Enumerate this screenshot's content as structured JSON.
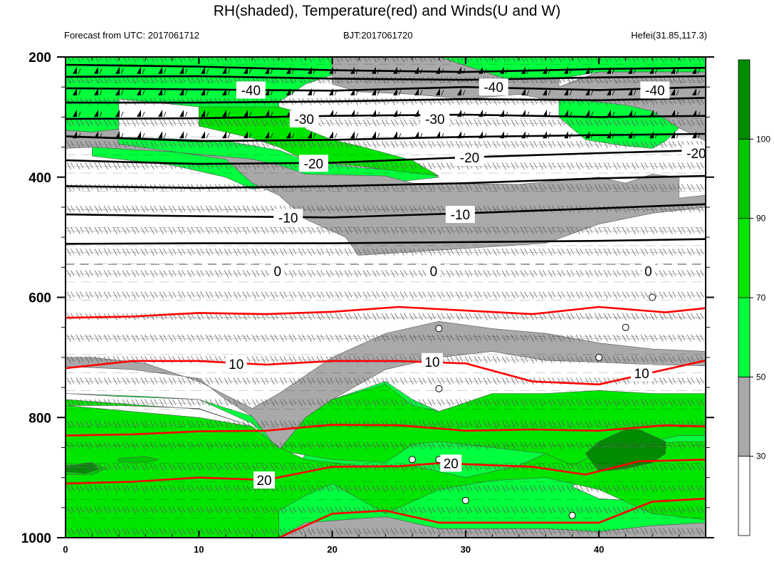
{
  "title": "RH(shaded), Temperature(red) and Winds(U and W)",
  "subtitle_left": "Forecast from UTC: 2017061712",
  "subtitle_center": "BJT:2017061720",
  "subtitle_right": "Hefei(31.85,117.3)",
  "colors": {
    "rh_below_30": "#ffffff",
    "rh_30_50": "#a9a9a9",
    "rh_50_70": "#00ff3c",
    "rh_70_90": "#00e600",
    "rh_90_100": "#00c800",
    "rh_above_100": "#008c00",
    "temperature": "#ff0000",
    "isotherm_below_0": "#000000"
  },
  "chart_data": {
    "type": "contour",
    "x_ticks": [
      "0",
      "10",
      "20",
      "30",
      "40"
    ],
    "y_ticks": [
      "200",
      "400",
      "600",
      "800",
      "1000"
    ],
    "xlim": [
      0,
      48
    ],
    "ylim": [
      1000,
      200
    ],
    "colorbar": {
      "levels": [
        "30",
        "50",
        "70",
        "90",
        "100"
      ]
    },
    "temperature_contour_labels": [
      {
        "text": "-40",
        "x": 13.9,
        "p": 255
      },
      {
        "text": "-40",
        "x": 32.1,
        "p": 250
      },
      {
        "text": "-40",
        "x": 44.2,
        "p": 255
      },
      {
        "text": "-30",
        "x": 17.9,
        "p": 303
      },
      {
        "text": "-30",
        "x": 27.7,
        "p": 303
      },
      {
        "text": "-20",
        "x": 18.6,
        "p": 377
      },
      {
        "text": "-20",
        "x": 30.3,
        "p": 367
      },
      {
        "text": "-20",
        "x": 47.3,
        "p": 360
      },
      {
        "text": "-10",
        "x": 16.7,
        "p": 467
      },
      {
        "text": "-10",
        "x": 29.6,
        "p": 462
      },
      {
        "text": "0",
        "x": 15.9,
        "p": 556
      },
      {
        "text": "0",
        "x": 27.6,
        "p": 556
      },
      {
        "text": "0",
        "x": 43.7,
        "p": 556
      },
      {
        "text": "10",
        "x": 12.8,
        "p": 711
      },
      {
        "text": "10",
        "x": 27.5,
        "p": 707
      },
      {
        "text": "10",
        "x": 43.2,
        "p": 726
      },
      {
        "text": "20",
        "x": 14.9,
        "p": 904
      },
      {
        "text": "20",
        "x": 28.9,
        "p": 876
      }
    ],
    "temperature_isolines": [
      {
        "level": -40,
        "x": [
          0,
          10,
          20,
          30,
          40,
          48
        ],
        "p": [
          213,
          216,
          222,
          225,
          220,
          218
        ]
      },
      {
        "level": -40,
        "x": [
          0,
          10,
          20,
          30,
          40,
          48
        ],
        "p": [
          233,
          232,
          236,
          238,
          234,
          232
        ]
      },
      {
        "level": -40,
        "x": [
          0,
          10,
          20,
          30,
          40,
          48
        ],
        "p": [
          252,
          254,
          256,
          250,
          255,
          250
        ]
      },
      {
        "level": -35,
        "x": [
          0,
          10,
          20,
          30,
          40,
          48
        ],
        "p": [
          276,
          276,
          274,
          270,
          272,
          268
        ]
      },
      {
        "level": -30,
        "x": [
          0,
          10,
          20,
          30,
          40,
          48
        ],
        "p": [
          303,
          302,
          298,
          296,
          300,
          298
        ]
      },
      {
        "level": -25,
        "x": [
          0,
          10,
          20,
          30,
          40,
          48
        ],
        "p": [
          332,
          340,
          338,
          333,
          330,
          328
        ]
      },
      {
        "level": -20,
        "x": [
          0,
          10,
          20,
          30,
          40,
          48
        ],
        "p": [
          372,
          378,
          376,
          367,
          360,
          355
        ]
      },
      {
        "level": -15,
        "x": [
          0,
          10,
          20,
          30,
          40,
          48
        ],
        "p": [
          415,
          418,
          415,
          410,
          402,
          398
        ]
      },
      {
        "level": -10,
        "x": [
          0,
          10,
          20,
          30,
          40,
          48
        ],
        "p": [
          462,
          465,
          467,
          460,
          452,
          445
        ]
      },
      {
        "level": -5,
        "x": [
          0,
          10,
          20,
          30,
          40,
          48
        ],
        "p": [
          511,
          510,
          510,
          508,
          506,
          503
        ]
      },
      {
        "level": 5,
        "x": [
          0,
          5,
          10,
          15,
          20,
          25,
          30,
          35,
          40,
          45,
          48
        ],
        "p": [
          634,
          632,
          626,
          628,
          624,
          616,
          622,
          628,
          616,
          625,
          618
        ]
      },
      {
        "level": 10,
        "x": [
          0,
          5,
          10,
          15,
          20,
          25,
          30,
          35,
          40,
          45,
          48
        ],
        "p": [
          718,
          706,
          706,
          712,
          706,
          706,
          710,
          740,
          745,
          720,
          705
        ]
      },
      {
        "level": 15,
        "x": [
          0,
          5,
          10,
          15,
          20,
          25,
          30,
          35,
          40,
          45,
          48
        ],
        "p": [
          830,
          828,
          823,
          822,
          812,
          813,
          822,
          820,
          822,
          813,
          815
        ]
      },
      {
        "level": 20,
        "x": [
          0,
          5,
          10,
          15,
          20,
          25,
          28,
          35,
          39,
          43,
          48
        ],
        "p": [
          910,
          907,
          900,
          904,
          882,
          881,
          876,
          882,
          895,
          873,
          870
        ]
      },
      {
        "level": 25,
        "x": [
          16,
          20,
          24,
          28,
          32,
          36,
          40,
          44,
          48
        ],
        "p": [
          1000,
          960,
          955,
          975,
          975,
          975,
          975,
          940,
          935
        ]
      }
    ]
  }
}
